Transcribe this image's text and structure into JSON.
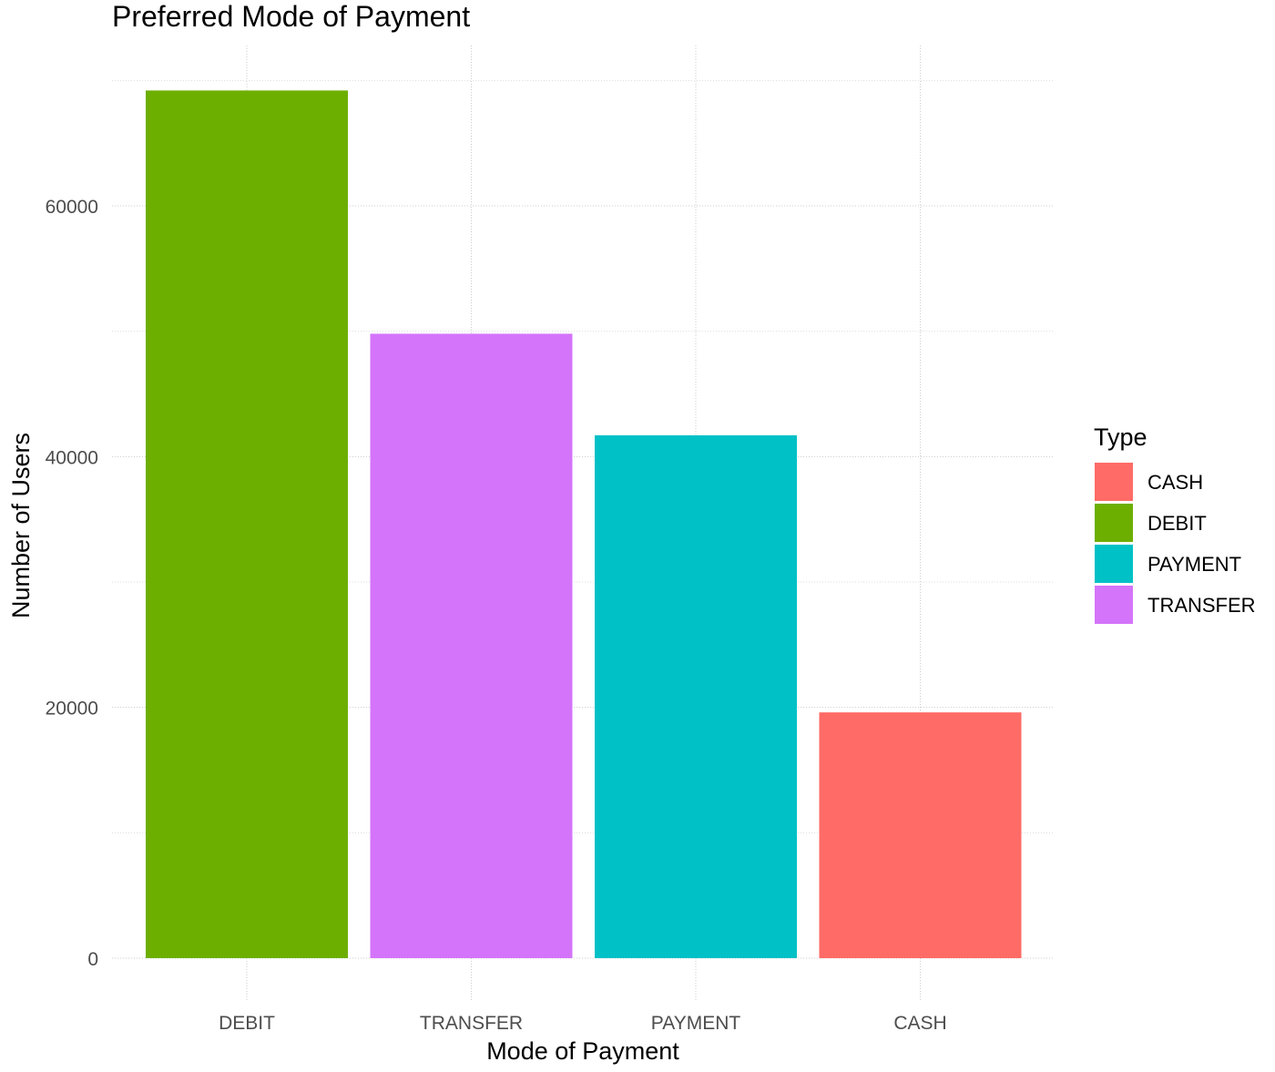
{
  "chart_data": {
    "type": "bar",
    "title": "Preferred Mode of Payment",
    "xlabel": "Mode of Payment",
    "ylabel": "Number of Users",
    "categories": [
      "DEBIT",
      "TRANSFER",
      "PAYMENT",
      "CASH"
    ],
    "values": [
      69200,
      49800,
      41700,
      19600
    ],
    "bar_types": [
      "DEBIT",
      "TRANSFER",
      "PAYMENT",
      "CASH"
    ],
    "ylim": [
      0,
      72000
    ],
    "yticks": [
      0,
      20000,
      40000,
      60000
    ],
    "yticks_minor": [
      10000,
      30000,
      50000,
      70000
    ],
    "grid": true,
    "legend": {
      "title": "Type",
      "position": "right",
      "entries": [
        {
          "label": "CASH",
          "color": "#F8766D"
        },
        {
          "label": "DEBIT",
          "color": "#7CAE00"
        },
        {
          "label": "PAYMENT",
          "color": "#00BFC4"
        },
        {
          "label": "TRANSFER",
          "color": "#C77CFF"
        }
      ]
    },
    "colors": {
      "CASH": "#FF6B66",
      "DEBIT": "#6DAF00",
      "PAYMENT": "#00C1C6",
      "TRANSFER": "#D474FA"
    }
  }
}
